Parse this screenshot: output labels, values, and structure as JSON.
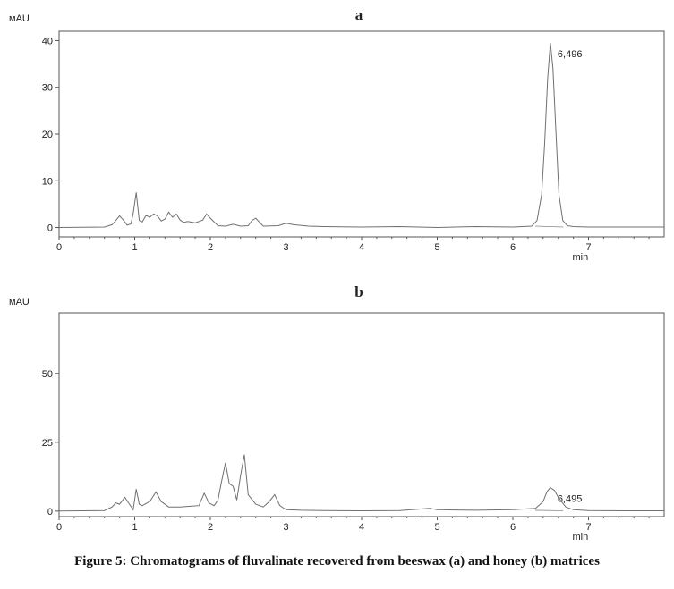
{
  "caption": "Figure 5: Chromatograms of fluvalinate recovered from beeswax (a) and honey (b) matrices",
  "colors": {
    "trace": "#707070",
    "axis": "#555555",
    "label": "#222222"
  },
  "chart_data": [
    {
      "type": "line",
      "title": "a",
      "ylabel": "мAU",
      "xlabel": "min",
      "xlim": [
        0,
        8
      ],
      "ylim": [
        -2,
        42
      ],
      "xticks": [
        0,
        1,
        2,
        3,
        4,
        5,
        6,
        7
      ],
      "yticks": [
        0,
        10,
        20,
        30,
        40
      ],
      "peak_annotation": {
        "label": "6,496",
        "x": 6.496,
        "y": 39.5
      },
      "series": [
        {
          "x": [
            0.0,
            0.6,
            0.7,
            0.75,
            0.8,
            0.85,
            0.9,
            0.95,
            0.98,
            1.02,
            1.06,
            1.1,
            1.15,
            1.2,
            1.25,
            1.3,
            1.35,
            1.4,
            1.45,
            1.5,
            1.55,
            1.6,
            1.65,
            1.7,
            1.8,
            1.9,
            1.95,
            2.0,
            2.1,
            2.2,
            2.3,
            2.4,
            2.5,
            2.55,
            2.6,
            2.7,
            2.9,
            3.0,
            3.1,
            3.3,
            3.5,
            4.0,
            4.5,
            5.0,
            5.5,
            6.0,
            6.25,
            6.32,
            6.38,
            6.42,
            6.46,
            6.496,
            6.53,
            6.57,
            6.61,
            6.66,
            6.72,
            6.8,
            7.0,
            7.5,
            8.0
          ],
          "y": [
            0.0,
            0.1,
            0.6,
            1.5,
            2.5,
            1.6,
            0.5,
            0.8,
            3.0,
            7.5,
            1.5,
            1.2,
            2.6,
            2.2,
            2.9,
            2.5,
            1.4,
            1.8,
            3.3,
            2.2,
            2.9,
            1.6,
            1.1,
            1.3,
            1.0,
            1.6,
            2.9,
            2.0,
            0.4,
            0.3,
            0.7,
            0.3,
            0.4,
            1.5,
            2.0,
            0.3,
            0.4,
            0.9,
            0.6,
            0.3,
            0.2,
            0.1,
            0.2,
            0.0,
            0.2,
            0.1,
            0.3,
            1.5,
            7.0,
            18.0,
            32.0,
            39.5,
            34.0,
            20.0,
            7.0,
            1.5,
            0.4,
            0.2,
            0.1,
            0.1,
            0.1
          ]
        }
      ]
    },
    {
      "type": "line",
      "title": "b",
      "ylabel": "мAU",
      "xlabel": "min",
      "xlim": [
        0,
        8
      ],
      "ylim": [
        -2,
        72
      ],
      "xticks": [
        0,
        1,
        2,
        3,
        4,
        5,
        6,
        7
      ],
      "yticks": [
        0,
        25,
        50
      ],
      "peak_annotation": {
        "label": "6,495",
        "x": 6.495,
        "y": 8.5
      },
      "series": [
        {
          "x": [
            0.0,
            0.6,
            0.7,
            0.75,
            0.8,
            0.87,
            0.93,
            0.98,
            1.02,
            1.06,
            1.1,
            1.2,
            1.28,
            1.35,
            1.45,
            1.6,
            1.75,
            1.85,
            1.92,
            1.98,
            2.05,
            2.1,
            2.15,
            2.2,
            2.25,
            2.3,
            2.35,
            2.4,
            2.45,
            2.5,
            2.6,
            2.7,
            2.78,
            2.85,
            2.92,
            3.0,
            3.2,
            3.5,
            4.0,
            4.5,
            4.9,
            5.0,
            5.5,
            6.0,
            6.3,
            6.4,
            6.45,
            6.495,
            6.55,
            6.6,
            6.7,
            6.8,
            7.0,
            7.5,
            8.0
          ],
          "y": [
            0.0,
            0.2,
            1.5,
            3.0,
            2.5,
            5.0,
            2.5,
            0.5,
            8.0,
            2.5,
            2.0,
            3.5,
            7.0,
            3.5,
            1.5,
            1.5,
            1.8,
            2.0,
            6.5,
            3.0,
            2.0,
            4.0,
            11.0,
            17.5,
            10.0,
            9.0,
            4.0,
            13.0,
            20.5,
            6.0,
            2.5,
            1.5,
            3.5,
            6.0,
            2.0,
            0.5,
            0.3,
            0.2,
            0.1,
            0.2,
            1.0,
            0.5,
            0.3,
            0.5,
            1.0,
            3.5,
            7.0,
            8.5,
            7.5,
            5.0,
            1.5,
            0.5,
            0.2,
            0.1,
            0.1
          ]
        }
      ]
    }
  ]
}
